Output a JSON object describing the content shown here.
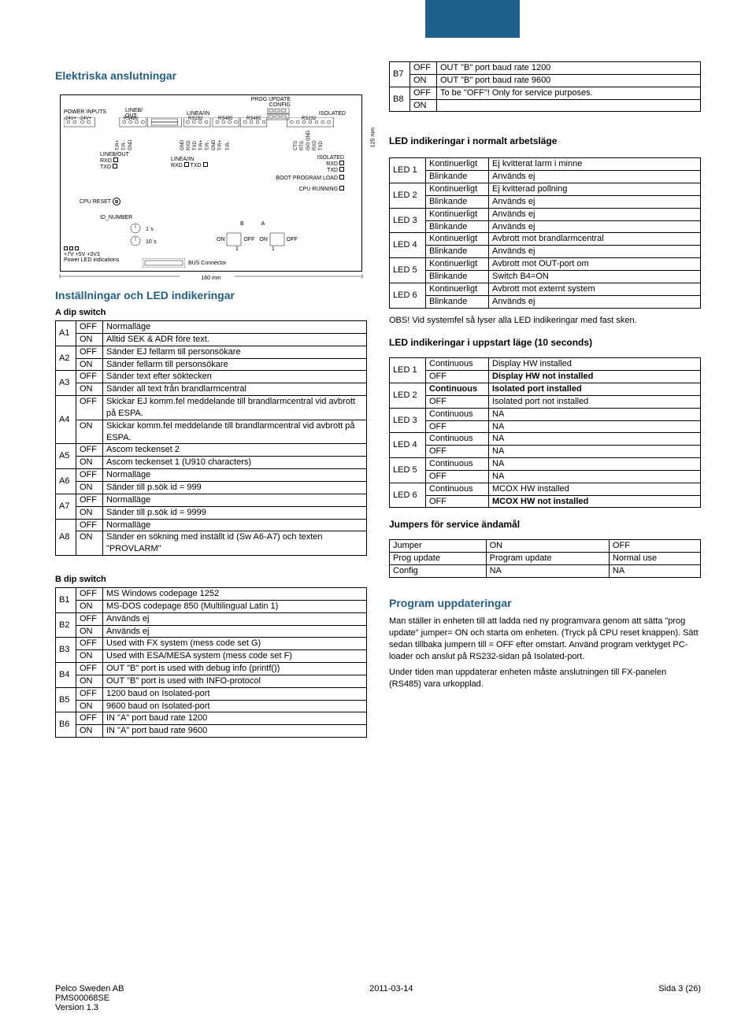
{
  "header_band_color": "#1f5f8b",
  "section1_title": "Elektriska anslutningar",
  "diagram": {
    "top_labels": [
      "PROG UPDATE",
      "CONFIG"
    ],
    "left_label": "POWER INPUTS",
    "lineb_out": "LINEB/\nOUT",
    "linea_in": "LINEA/IN",
    "isolated": "ISOLATED",
    "power_pins": [
      "-24V+",
      "-24V+"
    ],
    "bus_labels": [
      "RS485",
      "RS232",
      "RS485",
      "RS485",
      "RS232"
    ],
    "pin_row": [
      "T/R+",
      "T/R-",
      "GND",
      "GND",
      "RXD",
      "TXD",
      "T/R+",
      "T/R-",
      "GND",
      "T/R+",
      "T/R-",
      "CTS",
      "RTS",
      "ISO GND",
      "RXD",
      "TXD"
    ],
    "lineb_out2": "LINEB/OUT",
    "rxd": "RXD",
    "txd": "TXD",
    "linea_in2": "LINEA/IN",
    "isolated2": "ISOLATED",
    "boot": "BOOT PROGRAM LOAD",
    "cpu_running": "CPU RUNNING",
    "cpu_reset": "CPU RESET",
    "id_number": "ID_NUMBER",
    "ones": "1´s",
    "tens": "10´s",
    "power_leds": "+7V +5V +3V3",
    "power_led_ind": "Power LED indications",
    "bus_connector": "BUS Connector",
    "b": "B",
    "a": "A",
    "on": "ON",
    "off": "OFF",
    "one": "1",
    "width": "160 mm",
    "height": "125 mm"
  },
  "section2_title": "Inställningar och LED indikeringar",
  "a_dip_title": "A dip switch",
  "a_dip": [
    {
      "k": "A1",
      "r": [
        [
          "OFF",
          "Normalläge"
        ],
        [
          "ON",
          "Alltid SEK & ADR före text."
        ]
      ]
    },
    {
      "k": "A2",
      "r": [
        [
          "OFF",
          "Sänder EJ fellarm till personsökare"
        ],
        [
          "ON",
          "Sänder fellarm till personsökare"
        ]
      ]
    },
    {
      "k": "A3",
      "r": [
        [
          "OFF",
          "Sänder text efter söktecken"
        ],
        [
          "ON",
          "Sänder all text från brandlarmcentral"
        ]
      ]
    },
    {
      "k": "A4",
      "r": [
        [
          "OFF",
          "Skickar EJ komm.fel meddelande till brandlarmcentral vid avbrott på ESPA."
        ],
        [
          "ON",
          "Skickar komm.fel meddelande till brandlarmcentral vid avbrott på ESPA."
        ]
      ]
    },
    {
      "k": "A5",
      "r": [
        [
          "OFF",
          "Ascom teckenset 2"
        ],
        [
          "ON",
          "Ascom teckenset 1 (U910 characters)"
        ]
      ]
    },
    {
      "k": "A6",
      "r": [
        [
          "OFF",
          "Normalläge"
        ],
        [
          "ON",
          "Sänder till p.sök id = 999"
        ]
      ]
    },
    {
      "k": "A7",
      "r": [
        [
          "OFF",
          "Normalläge"
        ],
        [
          "ON",
          "Sänder till p.sök id = 9999"
        ]
      ]
    },
    {
      "k": "A8",
      "r": [
        [
          "OFF",
          "Normalläge"
        ],
        [
          "ON",
          "Sänder en sökning med inställt id (Sw A6-A7) och texten \"PROVLARM\""
        ]
      ]
    }
  ],
  "b_dip_title": "B dip switch",
  "b_dip": [
    {
      "k": "B1",
      "r": [
        [
          "OFF",
          "MS Windows codepage 1252"
        ],
        [
          "ON",
          "MS-DOS codepage 850 (Multilingual Latin 1)"
        ]
      ]
    },
    {
      "k": "B2",
      "r": [
        [
          "OFF",
          "Används ej"
        ],
        [
          "ON",
          "Används ej"
        ]
      ]
    },
    {
      "k": "B3",
      "r": [
        [
          "OFF",
          "Used with FX system (mess code set G)"
        ],
        [
          "ON",
          "Used with ESA/MESA system (mess code set F)"
        ]
      ]
    },
    {
      "k": "B4",
      "r": [
        [
          "OFF",
          "OUT \"B\" port is used with debug info (printf())"
        ],
        [
          "ON",
          "OUT \"B\" port is used with INFO-protocol"
        ]
      ]
    },
    {
      "k": "B5",
      "r": [
        [
          "OFF",
          "1200 baud on Isolated-port"
        ],
        [
          "ON",
          "9600 baud on Isolated-port"
        ]
      ]
    },
    {
      "k": "B6",
      "r": [
        [
          "OFF",
          "IN \"A\" port baud rate 1200"
        ],
        [
          "ON",
          "IN \"A\" port baud rate 9600"
        ]
      ]
    }
  ],
  "b78": [
    {
      "k": "B7",
      "r": [
        [
          "OFF",
          "OUT \"B\" port baud rate 1200"
        ],
        [
          "ON",
          "OUT \"B\" port baud rate 9600"
        ]
      ]
    },
    {
      "k": "B8",
      "r": [
        [
          "OFF",
          "To be \"OFF\"! Only for service purposes."
        ],
        [
          "ON",
          ""
        ]
      ]
    }
  ],
  "led_normal_title": "LED indikeringar i normalt arbetsläge",
  "led_normal": [
    {
      "k": "LED 1",
      "r": [
        [
          "Kontinuerligt",
          "Ej kvitterat larm i minne"
        ],
        [
          "Blinkande",
          "Används ej"
        ]
      ]
    },
    {
      "k": "LED 2",
      "r": [
        [
          "Kontinuerligt",
          "Ej kvitterad pollning"
        ],
        [
          "Blinkande",
          "Används ej"
        ]
      ]
    },
    {
      "k": "LED 3",
      "r": [
        [
          "Kontinuerligt",
          "Används ej"
        ],
        [
          "Blinkande",
          "Används ej"
        ]
      ]
    },
    {
      "k": "LED 4",
      "r": [
        [
          "Kontinuerligt",
          "Avbrott mot brandlarmcentral"
        ],
        [
          "Blinkande",
          "Används ej"
        ]
      ]
    },
    {
      "k": "LED 5",
      "r": [
        [
          "Kontinuerligt",
          "Avbrott mot OUT-port om"
        ],
        [
          "Blinkande",
          "Switch B4=ON"
        ]
      ]
    },
    {
      "k": "LED 6",
      "r": [
        [
          "Kontinuerligt",
          "Avbrott mot externt system"
        ],
        [
          "Blinkande",
          "Används ej"
        ]
      ]
    }
  ],
  "obs_text": "OBS! Vid systemfel så lyser alla LED indikeringar med fast sken.",
  "led_start_title": "LED indikeringar i uppstart läge (10 seconds)",
  "led_start": [
    {
      "k": "LED 1",
      "r": [
        [
          "Continuous",
          "Display HW installed",
          false
        ],
        [
          "OFF",
          "Display HW not installed",
          true
        ]
      ]
    },
    {
      "k": "LED 2",
      "r": [
        [
          "Continuous",
          "Isolated port installed",
          true,
          true
        ],
        [
          "OFF",
          "Isolated port not installed",
          false
        ]
      ]
    },
    {
      "k": "LED 3",
      "r": [
        [
          "Continuous",
          "NA",
          false
        ],
        [
          "OFF",
          "NA",
          false
        ]
      ]
    },
    {
      "k": "LED 4",
      "r": [
        [
          "Continuous",
          "NA",
          false
        ],
        [
          "OFF",
          "NA",
          false
        ]
      ]
    },
    {
      "k": "LED 5",
      "r": [
        [
          "Continuous",
          "NA",
          false
        ],
        [
          "OFF",
          "NA",
          false
        ]
      ]
    },
    {
      "k": "LED 6",
      "r": [
        [
          "Continuous",
          "MCOX HW installed",
          false
        ],
        [
          "OFF",
          "MCOX HW not installed",
          true
        ]
      ]
    }
  ],
  "jumpers_title": "Jumpers för service ändamål",
  "jumpers_headers": [
    "Jumper",
    "ON",
    "OFF"
  ],
  "jumpers_rows": [
    [
      "Prog update",
      "Program update",
      "Normal use"
    ],
    [
      "Config",
      "NA",
      "NA"
    ]
  ],
  "program_title": "Program uppdateringar",
  "program_p1": "Man ställer in enheten till att ladda ned ny programvara genom att sätta \"prog update\" jumper= ON och starta om enheten. (Tryck på CPU reset knappen). Sätt sedan tillbaka jumpern till = OFF efter omstart. Använd program verktyget PC-loader och anslut på RS232-sidan på Isolated-port.",
  "program_p2": "Under tiden man uppdaterar enheten måste anslutningen till FX-panelen (RS485) vara urkopplad.",
  "footer_left1": "Pelco Sweden AB",
  "footer_left2": "PMS00068SE",
  "footer_left3": "Version 1.3",
  "footer_center": "2011-03-14",
  "footer_right": "Sida 3 (26)"
}
